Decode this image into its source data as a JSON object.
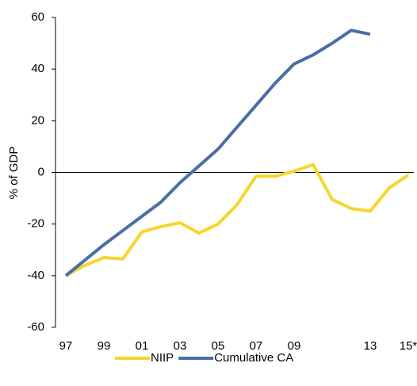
{
  "chart_data": {
    "type": "line",
    "y_label": "% of GDP",
    "categories": [
      "97",
      null,
      "99",
      null,
      "01",
      null,
      "03",
      null,
      "05",
      null,
      "07",
      null,
      "09",
      null,
      null,
      null,
      "13",
      null,
      "15*"
    ],
    "series": [
      {
        "name": "NIIP",
        "color": "#f7d52b",
        "values": [
          -40,
          -36,
          -33,
          -33.5,
          -23,
          -21,
          -19.5,
          -23.5,
          -20,
          -12.5,
          -1.5,
          -1.5,
          0.5,
          3,
          -10.5,
          -14,
          -15,
          -6,
          -1
        ]
      },
      {
        "name": "Cumulative CA",
        "color": "#4a6ea6",
        "values": [
          -40,
          -34,
          -28,
          -22.5,
          -17,
          -11.5,
          -4,
          2.5,
          9,
          17.5,
          26,
          34.5,
          42,
          45.5,
          50,
          55,
          53.5,
          null,
          null
        ]
      }
    ],
    "ylim": [
      -60,
      60
    ],
    "yticks": [
      -60,
      -40,
      -20,
      0,
      20,
      40,
      60
    ]
  }
}
